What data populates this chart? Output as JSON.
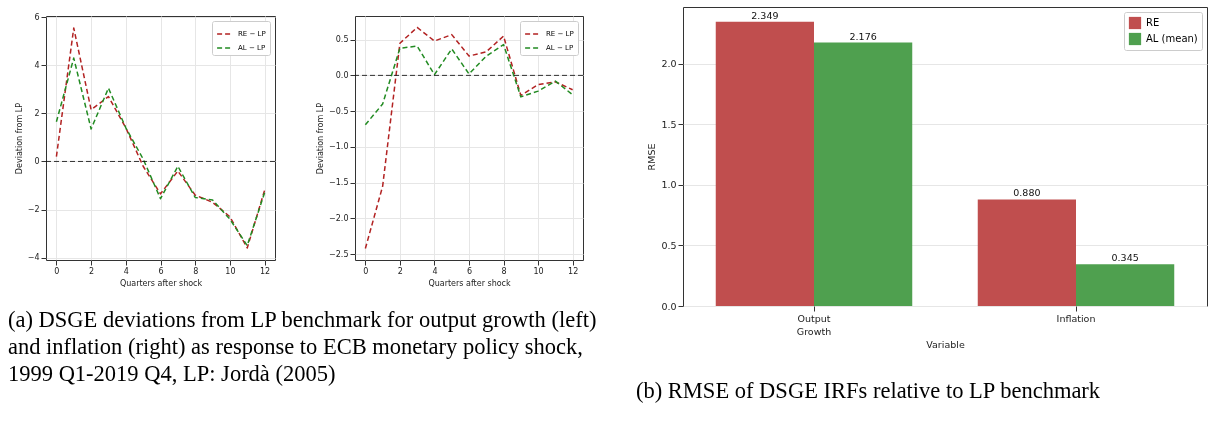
{
  "chart_data": [
    {
      "type": "line",
      "xlabel": "Quarters after shock",
      "ylabel": "Deviation from LP",
      "x": [
        0,
        1,
        2,
        3,
        4,
        5,
        6,
        7,
        8,
        9,
        10,
        11,
        12
      ],
      "series": [
        {
          "name": "RE − LP",
          "color": "#b22222",
          "values": [
            0.2,
            5.55,
            2.15,
            2.7,
            1.4,
            -0.2,
            -1.35,
            -0.4,
            -1.4,
            -1.7,
            -2.3,
            -3.6,
            -1.2
          ]
        },
        {
          "name": "AL − LP",
          "color": "#228b22",
          "values": [
            1.65,
            4.3,
            1.35,
            3.05,
            1.4,
            0.1,
            -1.55,
            -0.2,
            -1.5,
            -1.6,
            -2.4,
            -3.5,
            -1.3
          ]
        }
      ],
      "xlim": [
        -0.6,
        12.6
      ],
      "ylim": [
        -4.1,
        6.05
      ],
      "xticks": [
        0,
        2,
        4,
        6,
        8,
        10,
        12
      ],
      "yticks": [
        -4,
        -2,
        0,
        2,
        4,
        6
      ],
      "ref_lines": [
        {
          "axis": "y",
          "value": 0,
          "color": "#000000",
          "line_style": "dashed"
        }
      ],
      "grid": true,
      "legend": "top right",
      "line_style": "dashed",
      "annotations": [
        "(a) DSGE deviations from LP benchmark for output growth (left) and inflation (right) as response to ECB monetary policy shock, 1999 Q1-2019 Q4, LP: Jordà (2005)"
      ]
    },
    {
      "type": "line",
      "xlabel": "Quarters after shock",
      "ylabel": "Deviation from LP",
      "x": [
        0,
        1,
        2,
        3,
        4,
        5,
        6,
        7,
        8,
        9,
        10,
        11,
        12
      ],
      "series": [
        {
          "name": "RE − LP",
          "color": "#b22222",
          "values": [
            -2.42,
            -1.55,
            0.45,
            0.67,
            0.48,
            0.57,
            0.27,
            0.33,
            0.55,
            -0.28,
            -0.13,
            -0.09,
            -0.2
          ]
        },
        {
          "name": "AL − LP",
          "color": "#228b22",
          "values": [
            -0.69,
            -0.4,
            0.38,
            0.41,
            0.01,
            0.37,
            0.02,
            0.27,
            0.43,
            -0.3,
            -0.22,
            -0.08,
            -0.27
          ]
        }
      ],
      "xlim": [
        -0.6,
        12.6
      ],
      "ylim": [
        -2.58,
        0.83
      ],
      "xticks": [
        0,
        2,
        4,
        6,
        8,
        10,
        12
      ],
      "yticks": [
        -2.5,
        {
          "value": -2,
          "label": "−2.0"
        },
        -1.5,
        {
          "value": -1,
          "label": "−1.0"
        },
        -0.5,
        {
          "value": 0,
          "label": "0.0"
        },
        0.5
      ],
      "ref_lines": [
        {
          "axis": "y",
          "value": 0,
          "color": "#000000",
          "line_style": "dashed"
        }
      ],
      "grid": true,
      "legend": "top right",
      "line_style": "dashed"
    },
    {
      "type": "bar",
      "xlabel": "Variable",
      "ylabel": "RMSE",
      "categories": [
        "Output\nGrowth",
        "Inflation"
      ],
      "series": [
        {
          "name": "RE",
          "color": "#c04e4e",
          "values": [
            2.349,
            0.88
          ],
          "value_labels": [
            "2.349",
            "0.880"
          ]
        },
        {
          "name": "AL (mean)",
          "color": "#4fa04f",
          "values": [
            2.176,
            0.345
          ],
          "value_labels": [
            "2.176",
            "0.345"
          ]
        }
      ],
      "ylim": [
        0,
        2.47
      ],
      "yticks": [
        {
          "value": 0,
          "label": "0.0"
        },
        0.5,
        {
          "value": 1,
          "label": "1.0"
        },
        1.5,
        {
          "value": 2,
          "label": "2.0"
        }
      ],
      "grid": "y",
      "legend": "top right",
      "annotations": [
        "(b) RMSE of DSGE IRFs relative to LP benchmark"
      ]
    }
  ]
}
